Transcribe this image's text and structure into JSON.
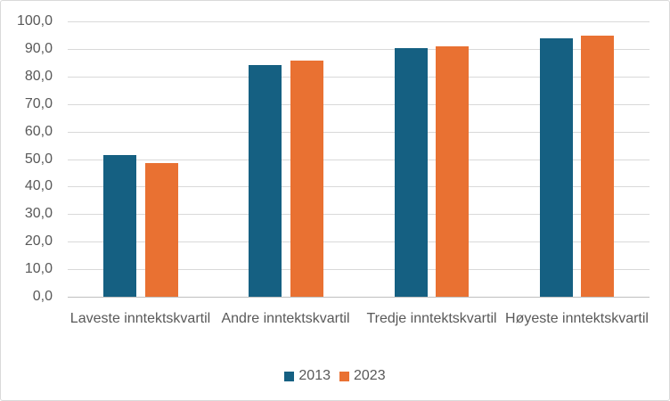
{
  "chart_data": {
    "type": "bar",
    "title": "",
    "xlabel": "",
    "ylabel": "",
    "categories": [
      "Laveste inntektskvartil",
      "Andre inntektskvartil",
      "Tredje inntektskvartil",
      "Høyeste inntektskvartil"
    ],
    "series": [
      {
        "name": "2013",
        "color": "#156082",
        "values": [
          51.3,
          84.0,
          90.4,
          93.8
        ]
      },
      {
        "name": "2023",
        "color": "#E97132",
        "values": [
          48.4,
          85.7,
          90.8,
          94.8
        ]
      }
    ],
    "ylim": [
      0,
      100
    ],
    "y_tick_step": 10,
    "y_ticks": [
      "0,0",
      "10,0",
      "20,0",
      "30,0",
      "40,0",
      "50,0",
      "60,0",
      "70,0",
      "80,0",
      "90,0",
      "100,0"
    ],
    "grid": true,
    "legend_position": "bottom",
    "legend": [
      "2013",
      "2023"
    ],
    "colors": {
      "series_2013": "#156082",
      "series_2023": "#E97132",
      "gridline": "#d9d9d9",
      "axis_line": "#bfbfbf",
      "text": "#595959",
      "chart_border": "#d9d9d9",
      "background": "#ffffff"
    }
  }
}
